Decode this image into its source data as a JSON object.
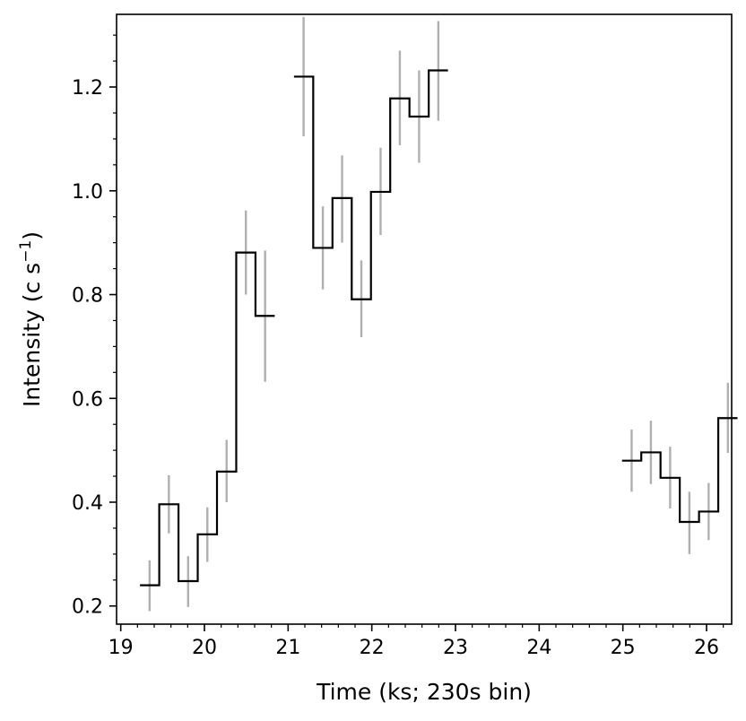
{
  "chart_data": {
    "type": "line",
    "step": true,
    "xlabel": "Time (ks; 230s bin)",
    "ylabel_main": "Intensity (c s",
    "ylabel_sup": "−1",
    "ylabel_close": ")",
    "xlim": [
      18.95,
      26.3
    ],
    "ylim": [
      0.165,
      1.34
    ],
    "xticks": [
      19,
      20,
      21,
      22,
      23,
      24,
      25,
      26
    ],
    "xtick_labels": [
      "19",
      "20",
      "21",
      "22",
      "23",
      "24",
      "25",
      "26"
    ],
    "yticks": [
      0.2,
      0.4,
      0.6,
      0.8,
      1.0,
      1.2
    ],
    "ytick_labels": [
      "0.2",
      "0.4",
      "0.6",
      "0.8",
      "1.0",
      "1.2"
    ],
    "grid": false,
    "bin_width": 0.23,
    "line_color": "#000000",
    "errorbar_color": "#b0b0b0",
    "segments": [
      {
        "x": [
          19.345,
          19.575,
          19.805,
          20.035,
          20.265,
          20.495,
          20.725
        ],
        "y": [
          0.24,
          0.396,
          0.248,
          0.338,
          0.459,
          0.881,
          0.759
        ],
        "err_low": [
          0.19,
          0.34,
          0.198,
          0.285,
          0.4,
          0.8,
          0.632
        ],
        "err_high": [
          0.288,
          0.452,
          0.296,
          0.39,
          0.52,
          0.962,
          0.885
        ]
      },
      {
        "x": [
          21.185,
          21.415,
          21.645,
          21.875,
          22.105,
          22.335,
          22.565,
          22.795
        ],
        "y": [
          1.22,
          0.89,
          0.986,
          0.791,
          0.998,
          1.178,
          1.143,
          1.232
        ],
        "err_low": [
          1.105,
          0.81,
          0.9,
          0.718,
          0.915,
          1.088,
          1.054,
          1.135
        ],
        "err_high": [
          1.335,
          0.97,
          1.068,
          0.866,
          1.083,
          1.27,
          1.232,
          1.327
        ]
      },
      {
        "x": [
          25.105,
          25.335,
          25.565,
          25.795,
          26.025,
          26.255
        ],
        "y": [
          0.48,
          0.496,
          0.447,
          0.362,
          0.382,
          0.562
        ],
        "err_low": [
          0.42,
          0.435,
          0.388,
          0.3,
          0.327,
          0.495
        ],
        "err_high": [
          0.54,
          0.557,
          0.507,
          0.42,
          0.437,
          0.63
        ]
      }
    ]
  }
}
